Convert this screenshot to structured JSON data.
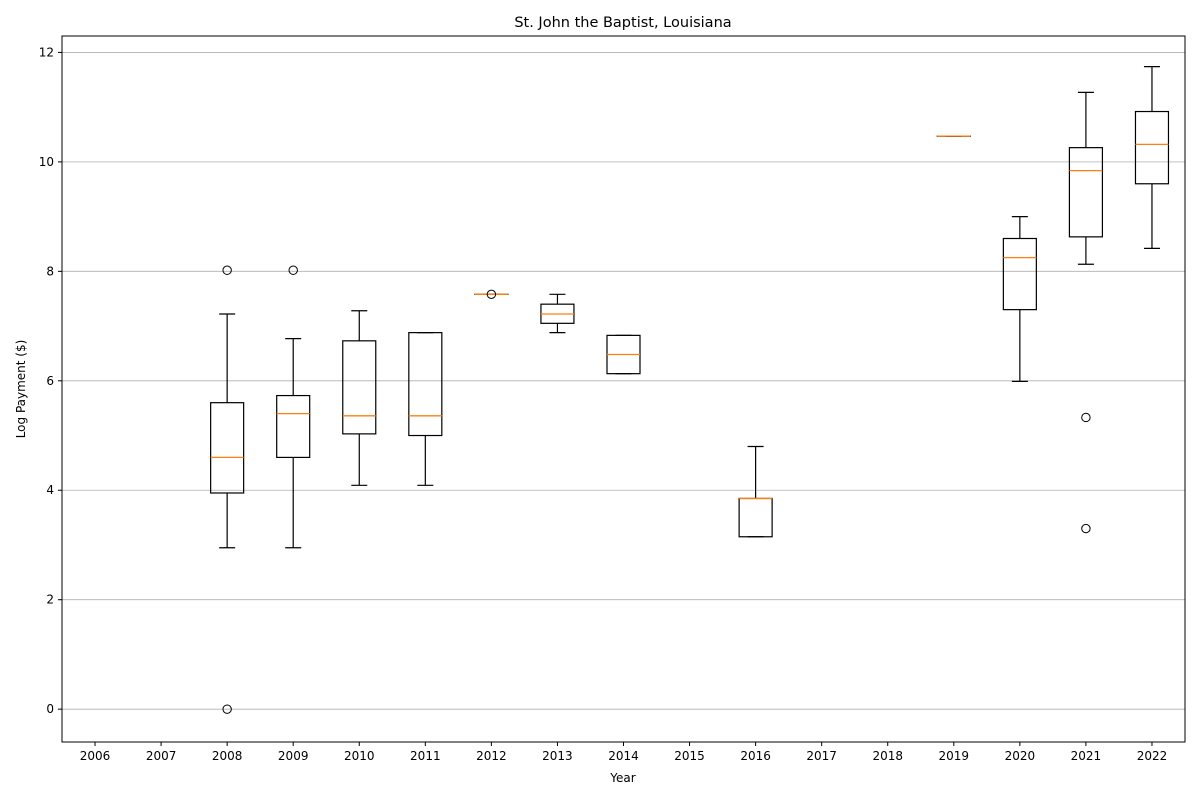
{
  "chart_data": {
    "type": "box",
    "title": "St. John the Baptist, Louisiana",
    "xlabel": "Year",
    "ylabel": "Log Payment ($)",
    "categories": [
      "2006",
      "2007",
      "2008",
      "2009",
      "2010",
      "2011",
      "2012",
      "2013",
      "2014",
      "2015",
      "2016",
      "2017",
      "2018",
      "2019",
      "2020",
      "2021",
      "2022"
    ],
    "yticks": [
      "0",
      "2",
      "4",
      "6",
      "8",
      "10",
      "12"
    ],
    "ylim": [
      -0.6,
      12.3
    ],
    "grid": "y",
    "colors": {
      "box": "#000000",
      "median": "#ff7f0e",
      "grid": "#b0b0b0"
    },
    "boxes": [
      {
        "year": "2008",
        "whisker_low": 2.95,
        "q1": 3.95,
        "median": 4.6,
        "q3": 5.6,
        "whisker_high": 7.22,
        "outliers": [
          8.02,
          0.0
        ]
      },
      {
        "year": "2009",
        "whisker_low": 2.95,
        "q1": 4.6,
        "median": 5.4,
        "q3": 5.73,
        "whisker_high": 6.77,
        "outliers": [
          8.02
        ]
      },
      {
        "year": "2010",
        "whisker_low": 4.09,
        "q1": 5.03,
        "median": 5.36,
        "q3": 6.73,
        "whisker_high": 7.28,
        "outliers": []
      },
      {
        "year": "2011",
        "whisker_low": 4.09,
        "q1": 5.0,
        "median": 5.36,
        "q3": 6.88,
        "whisker_high": 6.88,
        "outliers": []
      },
      {
        "year": "2012",
        "whisker_low": 7.58,
        "q1": 7.58,
        "median": 7.58,
        "q3": 7.58,
        "whisker_high": 7.58,
        "outliers": [
          7.58
        ]
      },
      {
        "year": "2013",
        "whisker_low": 6.88,
        "q1": 7.05,
        "median": 7.22,
        "q3": 7.4,
        "whisker_high": 7.58,
        "outliers": []
      },
      {
        "year": "2014",
        "whisker_low": 6.13,
        "q1": 6.13,
        "median": 6.48,
        "q3": 6.83,
        "whisker_high": 6.83,
        "outliers": []
      },
      {
        "year": "2016",
        "whisker_low": 3.15,
        "q1": 3.15,
        "median": 3.85,
        "q3": 3.85,
        "whisker_high": 4.8,
        "outliers": []
      },
      {
        "year": "2019",
        "whisker_low": 10.47,
        "q1": 10.47,
        "median": 10.47,
        "q3": 10.47,
        "whisker_high": 10.47,
        "outliers": []
      },
      {
        "year": "2020",
        "whisker_low": 5.99,
        "q1": 7.3,
        "median": 8.25,
        "q3": 8.6,
        "whisker_high": 9.0,
        "outliers": []
      },
      {
        "year": "2021",
        "whisker_low": 8.13,
        "q1": 8.63,
        "median": 9.84,
        "q3": 10.26,
        "whisker_high": 11.27,
        "outliers": [
          5.33,
          3.3
        ]
      },
      {
        "year": "2022",
        "whisker_low": 8.42,
        "q1": 9.6,
        "median": 10.32,
        "q3": 10.92,
        "whisker_high": 11.74,
        "outliers": []
      }
    ]
  }
}
